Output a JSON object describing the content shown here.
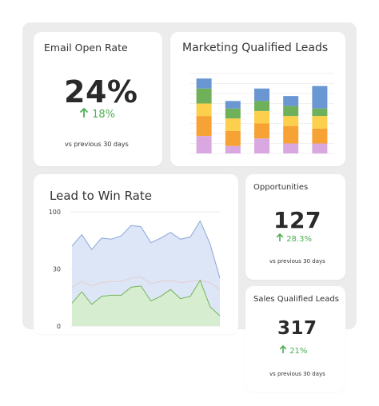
{
  "email_card": {
    "title": "Email Open Rate",
    "value": "24%",
    "delta": "18%",
    "subtitle": "vs previous 30 days"
  },
  "mql_card": {
    "title": "Marketing Qualified Leads"
  },
  "lead_card": {
    "title": "Lead to Win Rate"
  },
  "opp_card": {
    "title": "Opportunities",
    "value": "127",
    "delta": "28.3%",
    "subtitle": "vs previous 30 days"
  },
  "sql_card": {
    "title": "Sales Qualified Leads",
    "value": "317",
    "delta": "21%",
    "subtitle": "vs previous 30 days"
  },
  "colors": {
    "up": "#4caf50",
    "mql_segments": [
      "#d9a8e0",
      "#f7a234",
      "#fccf4d",
      "#6fb05a",
      "#6a96d2"
    ],
    "area_top_fill": "#dde6f6",
    "area_top_line": "#8aa6d6",
    "area_bottom_fill": "#d6edd0",
    "area_bottom_line": "#74b45a"
  },
  "icons": {
    "delta": "arrow-up-icon"
  },
  "chart_data": [
    {
      "type": "bar",
      "stacked": true,
      "categories": [
        "",
        "",
        "",
        "",
        ""
      ],
      "series": [
        {
          "values": [
            7,
            3,
            6,
            4,
            4
          ]
        },
        {
          "values": [
            8,
            6,
            6,
            7,
            6
          ]
        },
        {
          "values": [
            5,
            5,
            5,
            4,
            5
          ]
        },
        {
          "values": [
            6,
            4,
            4,
            4,
            3
          ]
        },
        {
          "values": [
            4,
            3,
            5,
            4,
            9
          ]
        }
      ],
      "ylim": [
        0,
        32
      ],
      "grid": true
    },
    {
      "type": "area",
      "x": [
        0,
        1,
        2,
        3,
        4,
        5,
        6,
        7,
        8,
        9,
        10,
        11,
        12,
        13,
        14,
        15
      ],
      "series": [
        {
          "values": [
            70,
            80,
            67,
            77,
            76,
            79,
            88,
            87,
            73,
            77,
            82,
            76,
            78,
            92,
            72,
            42
          ]
        },
        {
          "values": [
            34,
            39,
            35,
            38,
            39,
            39,
            42,
            43,
            37,
            39,
            40,
            38,
            39,
            40,
            38,
            32
          ]
        },
        {
          "values": [
            20,
            30,
            19,
            26,
            27,
            27,
            34,
            35,
            22,
            26,
            32,
            24,
            26,
            40,
            17,
            9
          ]
        }
      ],
      "yticks": [
        "100",
        "30",
        "0"
      ],
      "ylim": [
        0,
        100
      ],
      "grid": true
    }
  ]
}
